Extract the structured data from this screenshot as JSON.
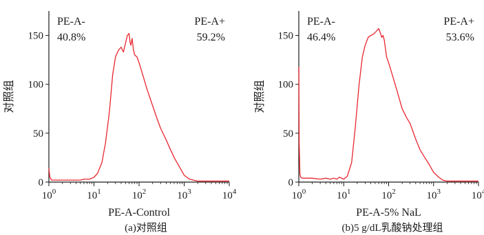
{
  "colors": {
    "curve": "#e8262e",
    "axis": "#1a1a1a",
    "text": "#1a1a1a"
  },
  "chart_data": [
    {
      "type": "line",
      "caption": "(a)对照组",
      "xlabel": "PE-A-Control",
      "ylabel": "对照组",
      "xscale": "log",
      "xlim": [
        1,
        10000
      ],
      "ylim": [
        0,
        175
      ],
      "x_ticks": [
        1,
        10,
        100,
        1000,
        10000
      ],
      "x_tick_labels": [
        {
          "base": "10",
          "exp": "0"
        },
        {
          "base": "10",
          "exp": "1"
        },
        {
          "base": "10",
          "exp": "2"
        },
        {
          "base": "10",
          "exp": "3"
        },
        {
          "base": "10",
          "exp": "4"
        }
      ],
      "y_ticks": [
        0,
        50,
        100,
        150
      ],
      "y_tick_labels": [
        "0",
        "50",
        "100",
        "150"
      ],
      "grid": false,
      "gate": {
        "left_label": "PE-A-",
        "left_value": "40.8%",
        "right_label": "PE-A+",
        "right_value": "59.2%"
      },
      "x": [
        1,
        1.05,
        1.15,
        1.3,
        1.6,
        2,
        3,
        4,
        5,
        6,
        7,
        8,
        9,
        10,
        12,
        15,
        18,
        22,
        26,
        30,
        35,
        40,
        45,
        50,
        55,
        60,
        63,
        66,
        70,
        75,
        80,
        90,
        100,
        120,
        150,
        200,
        250,
        300,
        400,
        500,
        600,
        800,
        1000,
        1300,
        1600,
        2000,
        3000,
        5000,
        10000
      ],
      "y": [
        14,
        5,
        2,
        2,
        2,
        2,
        2,
        2,
        2,
        3,
        3,
        3,
        4,
        5,
        9,
        20,
        40,
        72,
        110,
        128,
        135,
        138,
        133,
        142,
        150,
        152,
        143,
        140,
        147,
        135,
        130,
        128,
        122,
        110,
        95,
        78,
        65,
        55,
        43,
        33,
        25,
        15,
        7,
        3,
        2,
        1,
        1,
        1,
        1
      ]
    },
    {
      "type": "line",
      "caption": "(b)5 g/dL乳酸钠处理组",
      "xlabel": "PE-A-5% NaL",
      "ylabel": "对照组",
      "xscale": "log",
      "xlim": [
        1,
        10000
      ],
      "ylim": [
        0,
        175
      ],
      "x_ticks": [
        1,
        10,
        100,
        1000,
        10000
      ],
      "x_tick_labels": [
        {
          "base": "10",
          "exp": "0"
        },
        {
          "base": "10",
          "exp": "1"
        },
        {
          "base": "10",
          "exp": "2"
        },
        {
          "base": "10",
          "exp": "3"
        },
        {
          "base": "10",
          "exp": "4"
        }
      ],
      "y_ticks": [
        0,
        50,
        100,
        150
      ],
      "y_tick_labels": [
        "0",
        "50",
        "100",
        "150"
      ],
      "grid": false,
      "gate": {
        "left_label": "PE-A-",
        "left_value": "46.4%",
        "right_label": "PE-A+",
        "right_value": "53.6%"
      },
      "x": [
        1,
        1.02,
        1.06,
        1.1,
        1.2,
        1.5,
        2,
        3,
        4,
        5,
        6,
        7,
        8,
        10,
        12,
        15,
        18,
        22,
        26,
        30,
        35,
        40,
        45,
        50,
        55,
        60,
        66,
        70,
        75,
        80,
        90,
        100,
        120,
        150,
        200,
        250,
        300,
        400,
        500,
        600,
        800,
        1000,
        1300,
        1600,
        2000,
        3000,
        5000,
        10000
      ],
      "y": [
        118,
        40,
        8,
        5,
        4,
        4,
        4,
        3,
        4,
        3,
        4,
        3,
        5,
        3,
        6,
        20,
        55,
        100,
        128,
        140,
        148,
        150,
        151,
        153,
        155,
        157,
        152,
        148,
        150,
        145,
        128,
        122,
        110,
        95,
        75,
        66,
        60,
        44,
        33,
        27,
        18,
        10,
        5,
        2,
        1,
        1,
        1,
        1
      ]
    }
  ]
}
